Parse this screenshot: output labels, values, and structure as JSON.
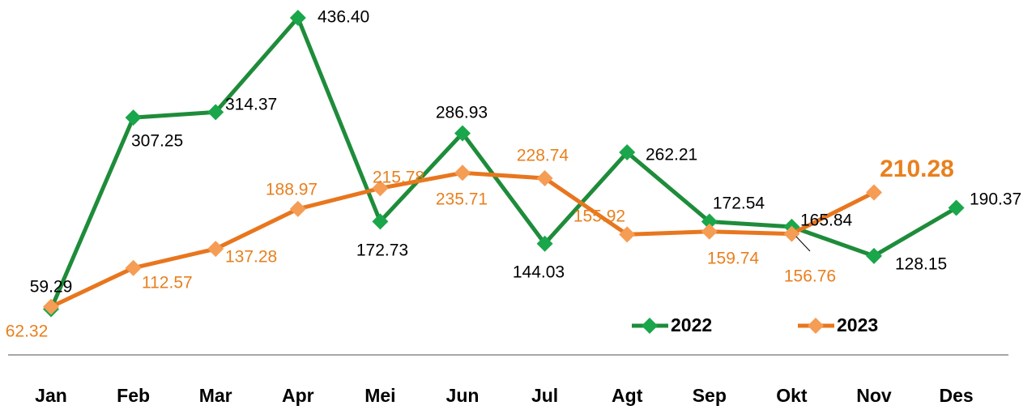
{
  "chart_data": {
    "type": "line",
    "categories": [
      "Jan",
      "Feb",
      "Mar",
      "Apr",
      "Mei",
      "Jun",
      "Jul",
      "Agt",
      "Sep",
      "Okt",
      "Nov",
      "Des"
    ],
    "series": [
      {
        "name": "2022",
        "color": "#1e8c3a",
        "marker_color": "#1aa64a",
        "label_color": "#000000",
        "values": [
          59.29,
          307.25,
          314.37,
          436.4,
          172.73,
          286.93,
          144.03,
          262.21,
          172.54,
          165.84,
          128.15,
          190.37
        ],
        "value_labels": [
          "59.29",
          "307.25",
          "314.37",
          "436.40",
          "172.73",
          "286.93",
          "144.03",
          "262.21",
          "172.54",
          "165.84",
          "128.15",
          "190.37"
        ]
      },
      {
        "name": "2023",
        "color": "#e8761e",
        "marker_color": "#f59c55",
        "label_color": "#e8801f",
        "values": [
          62.32,
          112.57,
          137.28,
          188.97,
          215.78,
          235.71,
          228.74,
          155.92,
          159.74,
          156.76,
          210.28,
          null
        ],
        "value_labels": [
          "62.32",
          "112.57",
          "137.28",
          "188.97",
          "215.78",
          "235.71",
          "228.74",
          "155.92",
          "159.74",
          "156.76",
          "210.28",
          null
        ]
      }
    ]
  }
}
